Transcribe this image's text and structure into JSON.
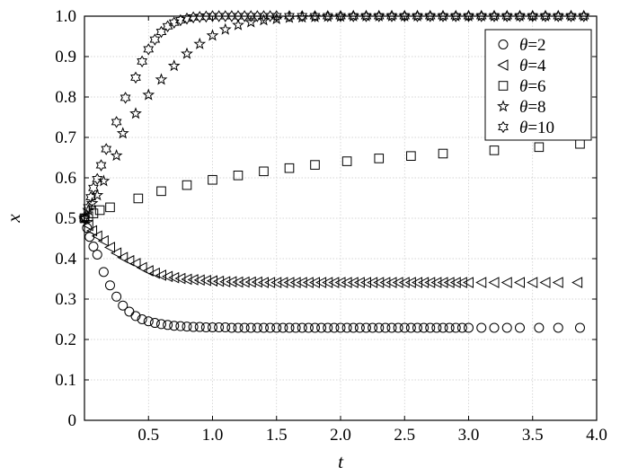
{
  "chart_data": {
    "type": "scatter",
    "title": "",
    "xlabel": "t",
    "ylabel": "x",
    "xlim": [
      0,
      4.0
    ],
    "ylim": [
      0,
      1.0
    ],
    "xticks": [
      "0.5",
      "1.0",
      "1.5",
      "2.0",
      "2.5",
      "3.0",
      "3.5",
      "4.0"
    ],
    "yticks": [
      "0",
      "0.1",
      "0.2",
      "0.3",
      "0.4",
      "0.5",
      "0.6",
      "0.7",
      "0.8",
      "0.9",
      "1.0"
    ],
    "grid": true,
    "legend_position": "top-right",
    "series": [
      {
        "name": "θ=2",
        "marker": "circle",
        "x": [
          0,
          0.02,
          0.04,
          0.07,
          0.1,
          0.15,
          0.2,
          0.25,
          0.3,
          0.35,
          0.4,
          0.45,
          0.5,
          0.55,
          0.6,
          0.65,
          0.7,
          0.75,
          0.8,
          0.85,
          0.9,
          0.95,
          1.0,
          1.05,
          1.1,
          1.15,
          1.2,
          1.25,
          1.3,
          1.35,
          1.4,
          1.45,
          1.5,
          1.55,
          1.6,
          1.65,
          1.7,
          1.75,
          1.8,
          1.85,
          1.9,
          1.95,
          2.0,
          2.05,
          2.1,
          2.15,
          2.2,
          2.25,
          2.3,
          2.35,
          2.4,
          2.45,
          2.5,
          2.55,
          2.6,
          2.65,
          2.7,
          2.75,
          2.8,
          2.85,
          2.9,
          2.95,
          3.0,
          3.1,
          3.2,
          3.3,
          3.4,
          3.55,
          3.7,
          3.87
        ],
        "y": [
          0.5,
          0.476,
          0.454,
          0.43,
          0.41,
          0.367,
          0.334,
          0.306,
          0.284,
          0.269,
          0.258,
          0.25,
          0.245,
          0.241,
          0.238,
          0.236,
          0.234,
          0.233,
          0.232,
          0.231,
          0.231,
          0.23,
          0.23,
          0.23,
          0.23,
          0.229,
          0.229,
          0.229,
          0.229,
          0.229,
          0.229,
          0.229,
          0.229,
          0.229,
          0.229,
          0.229,
          0.229,
          0.229,
          0.229,
          0.229,
          0.229,
          0.229,
          0.229,
          0.229,
          0.229,
          0.229,
          0.229,
          0.229,
          0.229,
          0.229,
          0.229,
          0.229,
          0.229,
          0.229,
          0.229,
          0.229,
          0.229,
          0.229,
          0.229,
          0.229,
          0.229,
          0.229,
          0.229,
          0.229,
          0.229,
          0.229,
          0.229,
          0.229,
          0.229,
          0.229
        ]
      },
      {
        "name": "θ=4",
        "marker": "triangle-left",
        "x": [
          0,
          0.03,
          0.06,
          0.1,
          0.15,
          0.2,
          0.25,
          0.3,
          0.35,
          0.4,
          0.45,
          0.5,
          0.55,
          0.6,
          0.65,
          0.7,
          0.75,
          0.8,
          0.85,
          0.9,
          0.95,
          1.0,
          1.05,
          1.1,
          1.15,
          1.2,
          1.25,
          1.3,
          1.35,
          1.4,
          1.45,
          1.5,
          1.55,
          1.6,
          1.65,
          1.7,
          1.75,
          1.8,
          1.85,
          1.9,
          1.95,
          2.0,
          2.05,
          2.1,
          2.15,
          2.2,
          2.25,
          2.3,
          2.35,
          2.4,
          2.45,
          2.5,
          2.55,
          2.6,
          2.65,
          2.7,
          2.75,
          2.8,
          2.85,
          2.9,
          2.95,
          3.0,
          3.1,
          3.2,
          3.3,
          3.4,
          3.5,
          3.6,
          3.7,
          3.85
        ],
        "y": [
          0.5,
          0.482,
          0.469,
          0.456,
          0.444,
          0.428,
          0.414,
          0.403,
          0.395,
          0.388,
          0.378,
          0.37,
          0.364,
          0.359,
          0.356,
          0.353,
          0.351,
          0.349,
          0.348,
          0.347,
          0.346,
          0.345,
          0.344,
          0.343,
          0.343,
          0.342,
          0.342,
          0.342,
          0.342,
          0.341,
          0.341,
          0.341,
          0.341,
          0.341,
          0.341,
          0.341,
          0.341,
          0.341,
          0.341,
          0.341,
          0.341,
          0.341,
          0.341,
          0.341,
          0.341,
          0.341,
          0.341,
          0.341,
          0.341,
          0.341,
          0.341,
          0.341,
          0.341,
          0.341,
          0.341,
          0.341,
          0.341,
          0.341,
          0.341,
          0.341,
          0.341,
          0.341,
          0.341,
          0.341,
          0.341,
          0.341,
          0.341,
          0.341,
          0.341,
          0.341
        ]
      },
      {
        "name": "θ=6",
        "marker": "square",
        "x": [
          0,
          0.03,
          0.07,
          0.12,
          0.2,
          0.42,
          0.6,
          0.8,
          1.0,
          1.2,
          1.4,
          1.6,
          1.8,
          2.05,
          2.3,
          2.55,
          2.8,
          3.2,
          3.55,
          3.87
        ],
        "y": [
          0.5,
          0.505,
          0.512,
          0.52,
          0.527,
          0.549,
          0.567,
          0.582,
          0.595,
          0.606,
          0.616,
          0.624,
          0.632,
          0.641,
          0.648,
          0.654,
          0.66,
          0.668,
          0.676,
          0.684
        ]
      },
      {
        "name": "θ=8",
        "marker": "star",
        "x": [
          0,
          0.03,
          0.06,
          0.1,
          0.15,
          0.25,
          0.3,
          0.4,
          0.5,
          0.6,
          0.7,
          0.8,
          0.9,
          1.0,
          1.1,
          1.2,
          1.3,
          1.4,
          1.5,
          1.6,
          1.7,
          1.8,
          1.9,
          2.0,
          2.1,
          2.2,
          2.3,
          2.4,
          2.5,
          2.6,
          2.7,
          2.8,
          2.9,
          3.0,
          3.1,
          3.2,
          3.3,
          3.4,
          3.5,
          3.6,
          3.7,
          3.8,
          3.9
        ],
        "y": [
          0.5,
          0.52,
          0.537,
          0.557,
          0.592,
          0.655,
          0.71,
          0.759,
          0.805,
          0.843,
          0.877,
          0.907,
          0.931,
          0.952,
          0.967,
          0.978,
          0.985,
          0.99,
          0.993,
          0.996,
          0.997,
          0.998,
          0.999,
          0.999,
          1.0,
          1.0,
          1.0,
          1.0,
          1.0,
          1.0,
          1.0,
          1.0,
          1.0,
          1.0,
          1.0,
          1.0,
          1.0,
          1.0,
          1.0,
          1.0,
          1.0,
          1.0,
          1.0
        ]
      },
      {
        "name": "θ=10",
        "marker": "hexagram",
        "x": [
          0,
          0.03,
          0.05,
          0.07,
          0.1,
          0.13,
          0.17,
          0.25,
          0.32,
          0.4,
          0.45,
          0.5,
          0.55,
          0.6,
          0.65,
          0.7,
          0.75,
          0.8,
          0.85,
          0.9,
          0.95,
          1.0,
          1.05,
          1.1,
          1.15,
          1.2,
          1.25,
          1.3,
          1.35,
          1.4,
          1.45,
          1.5,
          1.6,
          1.7,
          1.8,
          1.9,
          2.0,
          2.1,
          2.2,
          2.3,
          2.4,
          2.5,
          2.6,
          2.7,
          2.8,
          2.9,
          3.0,
          3.1,
          3.2,
          3.3,
          3.4,
          3.5,
          3.6,
          3.7,
          3.8,
          3.9
        ],
        "y": [
          0.5,
          0.527,
          0.552,
          0.575,
          0.597,
          0.631,
          0.671,
          0.738,
          0.798,
          0.848,
          0.888,
          0.918,
          0.942,
          0.961,
          0.975,
          0.984,
          0.99,
          0.994,
          0.997,
          0.998,
          0.999,
          1.0,
          1.0,
          1.0,
          1.0,
          1.0,
          1.0,
          1.0,
          1.0,
          1.0,
          1.0,
          1.0,
          1.0,
          1.0,
          1.0,
          1.0,
          1.0,
          1.0,
          1.0,
          1.0,
          1.0,
          1.0,
          1.0,
          1.0,
          1.0,
          1.0,
          1.0,
          1.0,
          1.0,
          1.0,
          1.0,
          1.0,
          1.0,
          1.0,
          1.0,
          1.0
        ]
      }
    ]
  }
}
